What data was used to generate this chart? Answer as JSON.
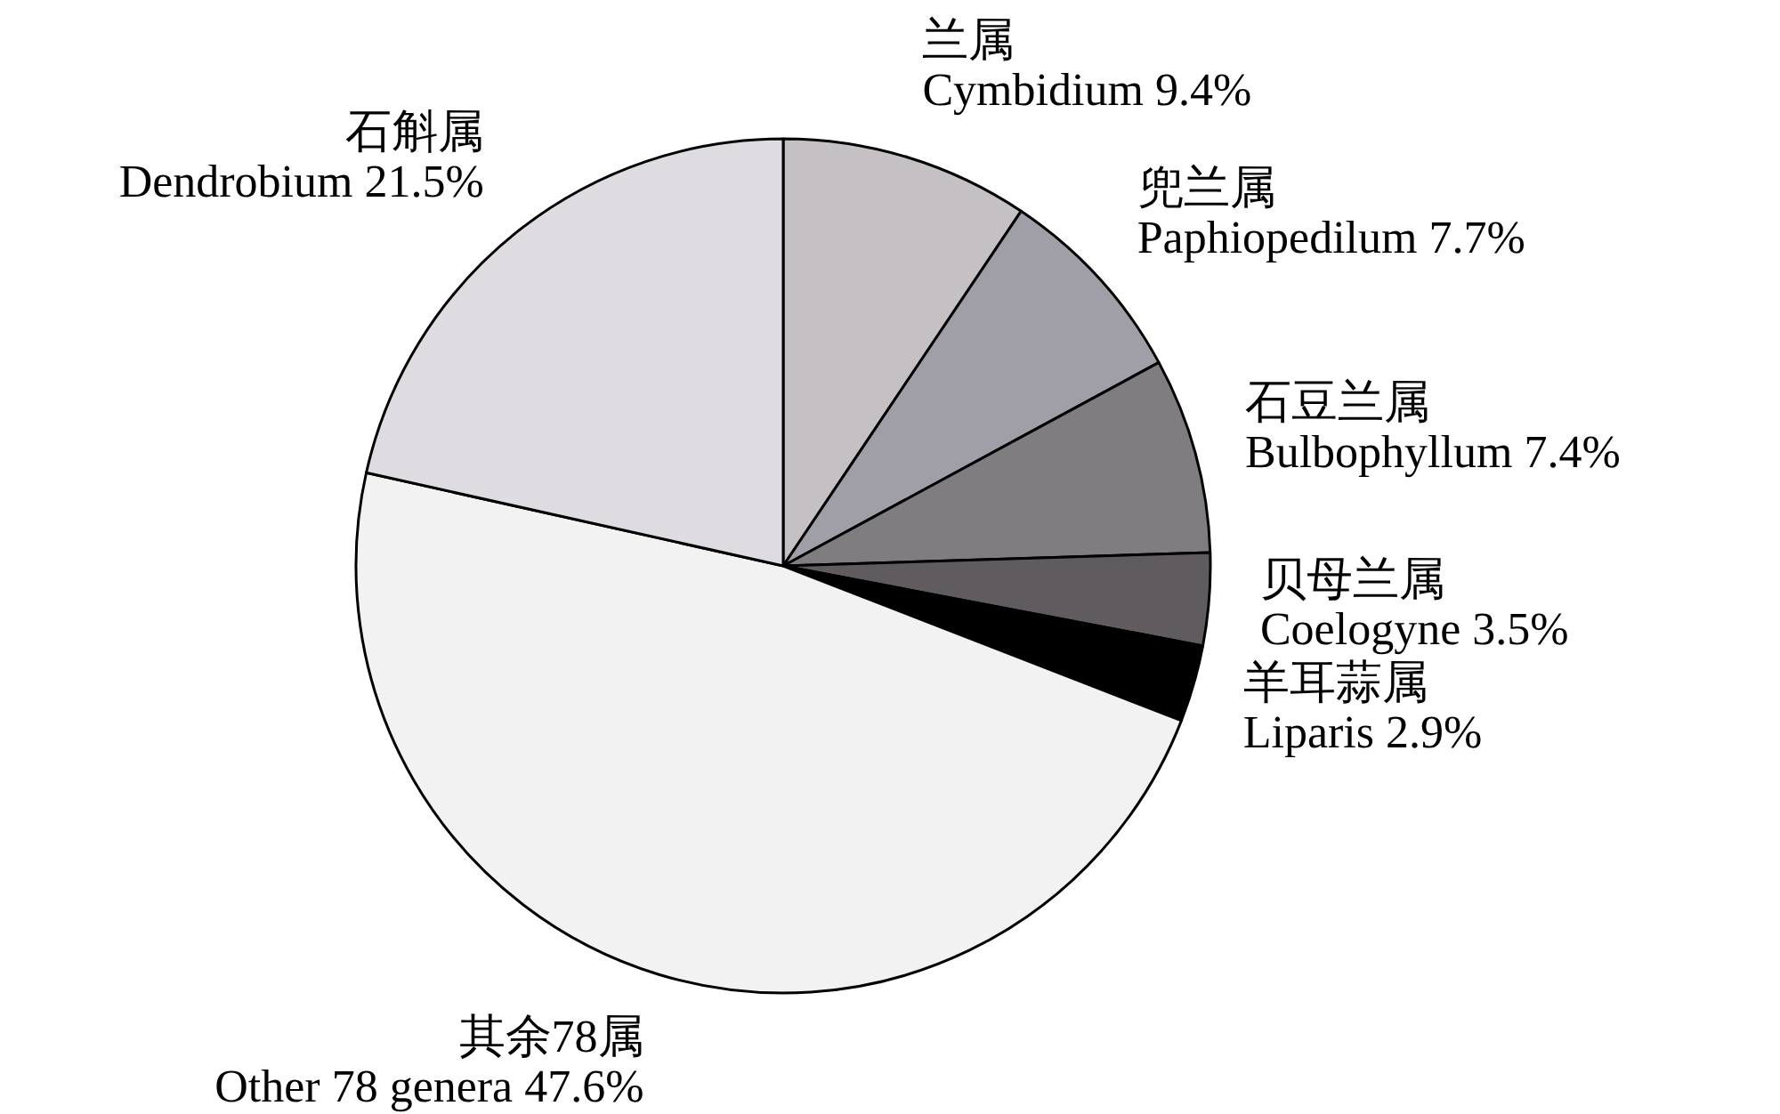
{
  "chart_data": {
    "type": "pie",
    "categories": [
      "兰属\nCymbidium",
      "兜兰属\nPaphiopedilum",
      "石豆兰属\nBulbophyllum",
      "贝母兰属\nCoelogyne",
      "羊耳蒜属\nLiparis",
      "其余78属\nOther 78 genera",
      "石斛属\nDendrobium"
    ],
    "values": [
      9.4,
      7.7,
      7.4,
      3.5,
      2.9,
      47.6,
      21.5
    ],
    "value_labels": [
      "9.4%",
      "7.7%",
      "7.4%",
      "3.5%",
      "2.9%",
      "47.6%",
      "21.5%"
    ],
    "colors": [
      "#c4c0c3",
      "#a09ea6",
      "#7f7d80",
      "#5f5b5e",
      "#000000",
      "#f2f2f2",
      "#dedce0"
    ]
  }
}
